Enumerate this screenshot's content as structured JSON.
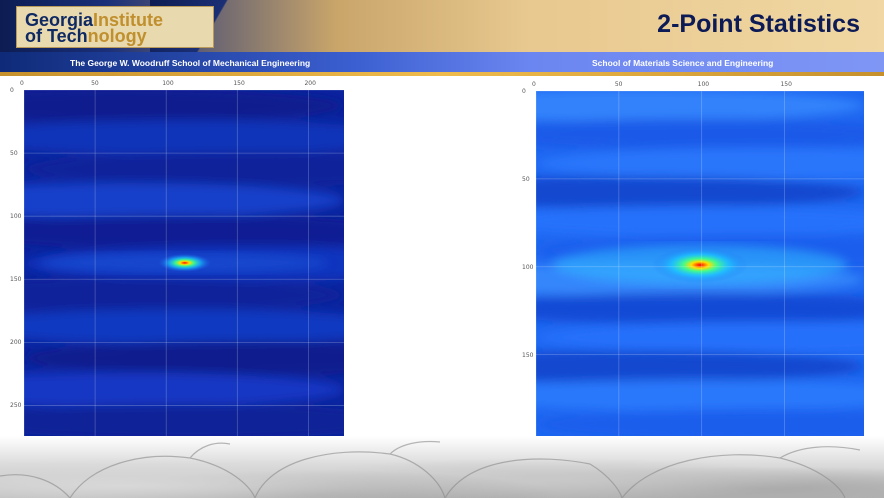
{
  "header": {
    "logo": {
      "line1_a": "Georgia",
      "line1_b": "Institute",
      "line2_a": "of Tech",
      "line2_b": "nology"
    },
    "title": "2-Point Statistics"
  },
  "subheader": {
    "left": "The George W. Woodruff School of Mechanical Engineering",
    "right": "School of Materials Science and Engineering"
  },
  "colors": {
    "heat_low": "#0a1f9c",
    "heat_mid": "#1e6df5",
    "heat_high": "#ff0000"
  },
  "chart_data": [
    {
      "type": "heatmap",
      "x_ticks": [
        "0",
        "50",
        "100",
        "150",
        "200"
      ],
      "y_ticks": [
        "0",
        "50",
        "100",
        "150",
        "200",
        "250"
      ],
      "xlim": [
        0,
        225
      ],
      "ylim": [
        0,
        275
      ],
      "peak": {
        "x": 113,
        "y": 137
      },
      "grid": true
    },
    {
      "type": "heatmap",
      "x_ticks": [
        "0",
        "50",
        "100",
        "150"
      ],
      "y_ticks": [
        "0",
        "50",
        "100",
        "150"
      ],
      "xlim": [
        0,
        198
      ],
      "ylim": [
        0,
        198
      ],
      "peak": {
        "x": 99,
        "y": 99
      },
      "grid": true
    }
  ]
}
